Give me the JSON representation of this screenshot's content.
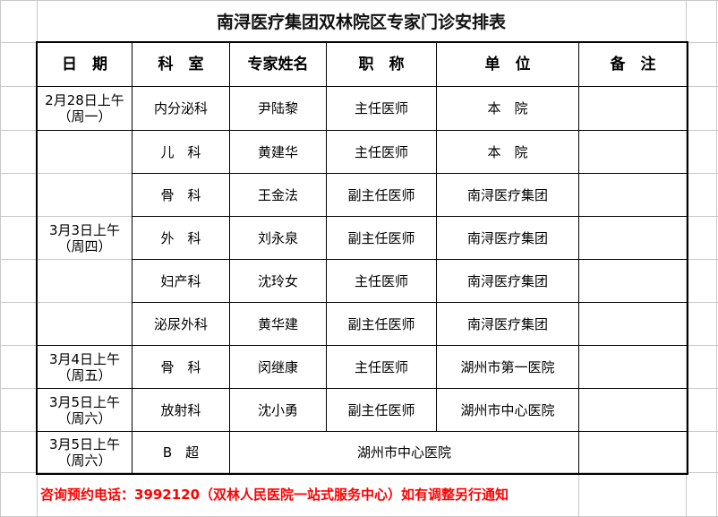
{
  "title": "南浔医疗集团双林院区专家门诊安排表",
  "headers": [
    "日　期",
    "科　室",
    "专家姓名",
    "职　称",
    "单　位",
    "备　注"
  ],
  "groups": [
    {
      "date": "2月28日上午\n（周一）",
      "rows": [
        [
          "内分泌科",
          "尹陆黎",
          "主任医师",
          "本　院",
          ""
        ]
      ]
    },
    {
      "date": "3月3日上午\n（周四）",
      "rows": [
        [
          "儿　科",
          "黄建华",
          "主任医师",
          "本　院",
          ""
        ],
        [
          "骨　科",
          "王金法",
          "副主任医师",
          "南浔医疗集团",
          ""
        ],
        [
          "外　科",
          "刘永泉",
          "副主任医师",
          "南浔医疗集团",
          ""
        ],
        [
          "妇产科",
          "沈玲女",
          "主任医师",
          "南浔医疗集团",
          ""
        ],
        [
          "泌尿外科",
          "黄华建",
          "副主任医师",
          "南浔医疗集团",
          ""
        ]
      ]
    },
    {
      "date": "3月4日上午\n（周五）",
      "rows": [
        [
          "骨　科",
          "闵继康",
          "主任医师",
          "湖州市第一医院",
          ""
        ]
      ]
    },
    {
      "date": "3月5日上午\n（周六）",
      "rows": [
        [
          "放射科",
          "沈小勇",
          "副主任医师",
          "湖州市中心医院",
          ""
        ]
      ]
    }
  ],
  "last_row": {
    "date": "3月5日上午\n（周六）",
    "dept": "B　超",
    "unit": "湖州市中心医院",
    "note": ""
  },
  "footer": "咨询预约电话：3992120（双林人民医院一站式服务中心）如有调整另行通知",
  "colors": {
    "footer_text": "#ff0000",
    "grid": "#c8c8c8"
  }
}
